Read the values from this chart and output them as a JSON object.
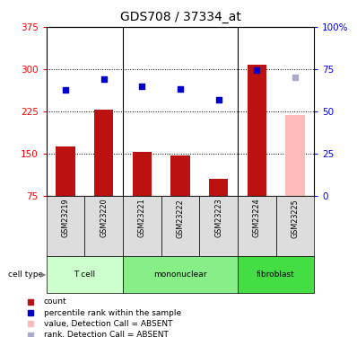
{
  "title": "GDS708 / 37334_at",
  "samples": [
    "GSM23219",
    "GSM23220",
    "GSM23221",
    "GSM23222",
    "GSM23223",
    "GSM23224",
    "GSM23225"
  ],
  "bar_values": [
    163,
    228,
    153,
    147,
    105,
    308,
    218
  ],
  "bar_colors": [
    "#bb1111",
    "#bb1111",
    "#bb1111",
    "#bb1111",
    "#bb1111",
    "#bb1111",
    "#ffbbbb"
  ],
  "dot_values": [
    263,
    283,
    270,
    265,
    245,
    298,
    285
  ],
  "dot_colors": [
    "#0000cc",
    "#0000cc",
    "#0000cc",
    "#0000cc",
    "#0000cc",
    "#0000cc",
    "#aaaacc"
  ],
  "ylim_left": [
    75,
    375
  ],
  "left_ticks": [
    75,
    150,
    225,
    300,
    375
  ],
  "right_ticks": [
    0,
    25,
    50,
    75,
    100
  ],
  "right_tick_labels": [
    "0",
    "25",
    "50",
    "75",
    "100%"
  ],
  "dotted_lines": [
    150,
    225,
    300
  ],
  "cell_groups": [
    {
      "label": "T cell",
      "indices": [
        0,
        1
      ],
      "color": "#ccffcc"
    },
    {
      "label": "mononuclear",
      "indices": [
        2,
        3,
        4
      ],
      "color": "#88ee88"
    },
    {
      "label": "fibroblast",
      "indices": [
        5,
        6
      ],
      "color": "#44dd44"
    }
  ],
  "legend_items": [
    {
      "color": "#bb1111",
      "label": "count"
    },
    {
      "color": "#0000cc",
      "label": "percentile rank within the sample"
    },
    {
      "color": "#ffbbbb",
      "label": "value, Detection Call = ABSENT"
    },
    {
      "color": "#aaaacc",
      "label": "rank, Detection Call = ABSENT"
    }
  ],
  "bar_width": 0.5,
  "cell_type_label": "cell type"
}
